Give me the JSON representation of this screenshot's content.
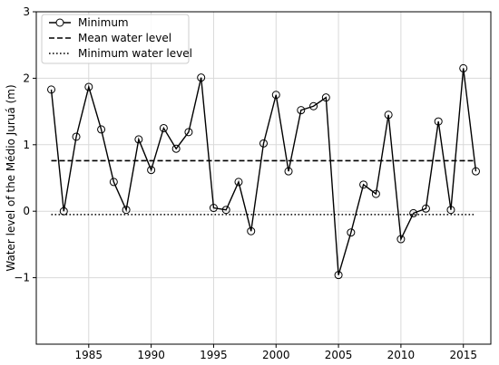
{
  "chart_data": {
    "type": "line",
    "title": "",
    "xlabel": "",
    "ylabel": "Water level of the Médio Juruá (m)",
    "xlim": [
      1980.8,
      2017.2
    ],
    "ylim": [
      -2.0,
      3.0
    ],
    "xticks": [
      1985,
      1990,
      1995,
      2000,
      2005,
      2010,
      2015
    ],
    "yticks": [
      -1,
      0,
      1,
      2,
      3
    ],
    "grid": true,
    "legend_position": "top-left",
    "series": [
      {
        "name": "Minimum",
        "style": "solid-line-open-circle-markers",
        "color": "#000000",
        "x": [
          1982,
          1983,
          1984,
          1985,
          1986,
          1987,
          1988,
          1989,
          1990,
          1991,
          1992,
          1993,
          1994,
          1995,
          1996,
          1997,
          1998,
          1999,
          2000,
          2001,
          2002,
          2003,
          2004,
          2005,
          2006,
          2007,
          2008,
          2009,
          2010,
          2011,
          2012,
          2013,
          2014,
          2015,
          2016
        ],
        "y": [
          1.83,
          0.0,
          1.12,
          1.87,
          1.23,
          0.44,
          0.02,
          1.08,
          0.62,
          1.25,
          0.94,
          1.19,
          2.01,
          0.05,
          0.02,
          0.44,
          -0.3,
          1.02,
          1.75,
          0.6,
          1.52,
          1.58,
          1.71,
          -0.96,
          -0.32,
          0.4,
          0.26,
          1.45,
          -0.42,
          -0.03,
          0.04,
          1.35,
          0.02,
          2.15,
          0.6
        ]
      },
      {
        "name": "Mean water level",
        "style": "dashed",
        "color": "#000000",
        "x": [
          1982,
          2016
        ],
        "y": [
          0.76,
          0.76
        ]
      },
      {
        "name": "Minimum water level",
        "style": "dotted",
        "color": "#000000",
        "x": [
          1982,
          2016
        ],
        "y": [
          -0.05,
          -0.05
        ]
      }
    ]
  }
}
